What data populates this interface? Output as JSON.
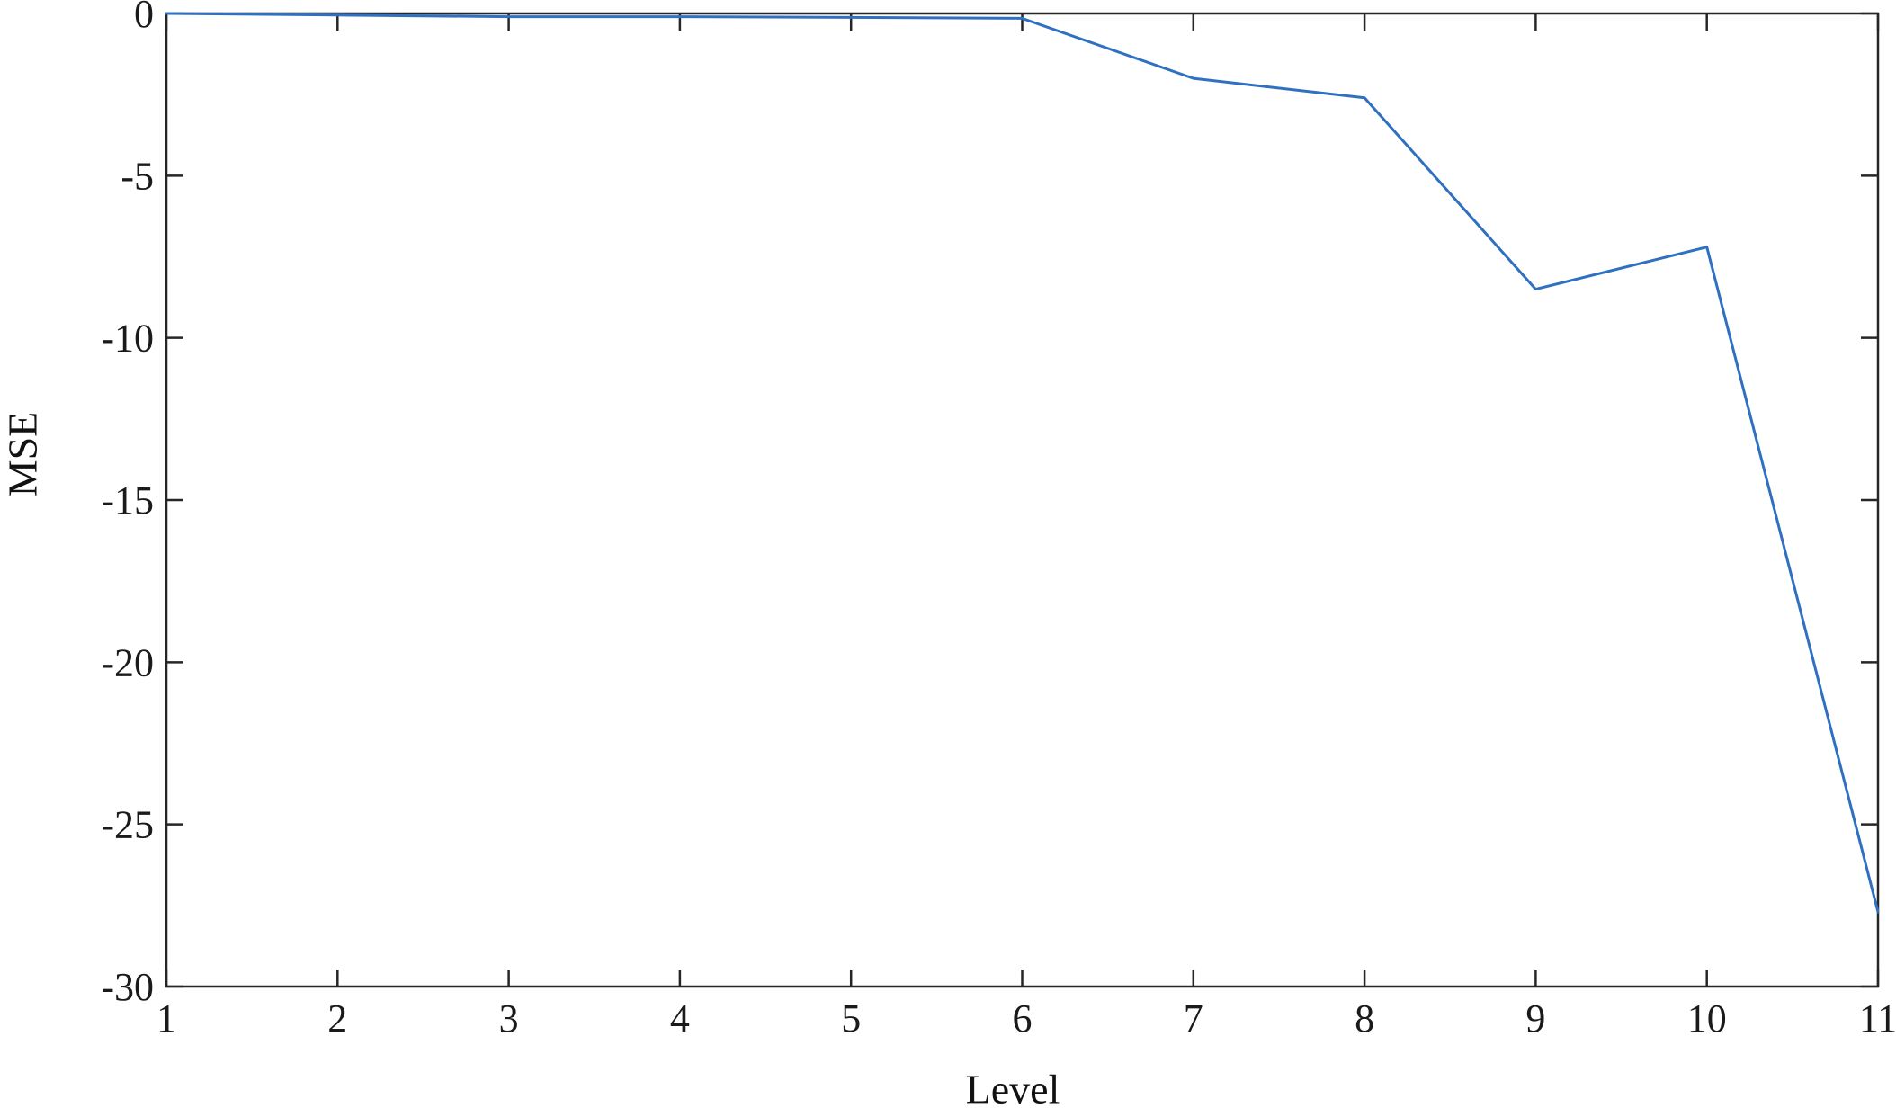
{
  "figure": {
    "background": "#ffffff",
    "axis_color": "#262626",
    "text_color": "#1a1a1a"
  },
  "chart_data": {
    "type": "line",
    "title": "",
    "xlabel": "Level",
    "ylabel": "MSE",
    "x": [
      1,
      2,
      3,
      4,
      5,
      6,
      7,
      8,
      9,
      10,
      11
    ],
    "y": [
      0,
      -0.05,
      -0.1,
      -0.1,
      -0.12,
      -0.15,
      -2.0,
      -2.6,
      -8.5,
      -7.2,
      -27.7
    ],
    "xlim": [
      1,
      11
    ],
    "ylim": [
      -30,
      0
    ],
    "xticks": [
      1,
      2,
      3,
      4,
      5,
      6,
      7,
      8,
      9,
      10,
      11
    ],
    "xtick_labels": [
      "1",
      "2",
      "3",
      "4",
      "5",
      "6",
      "7",
      "8",
      "9",
      "10",
      "11"
    ],
    "yticks": [
      0,
      -5,
      -10,
      -15,
      -20,
      -25,
      -30
    ],
    "ytick_labels": [
      "0",
      "-5",
      "-10",
      "-15",
      "-20",
      "-25",
      "-30"
    ],
    "grid": false,
    "legend": null,
    "box": true,
    "tick_direction": "in",
    "line_color": "#2f70c0",
    "line_width": 3
  }
}
